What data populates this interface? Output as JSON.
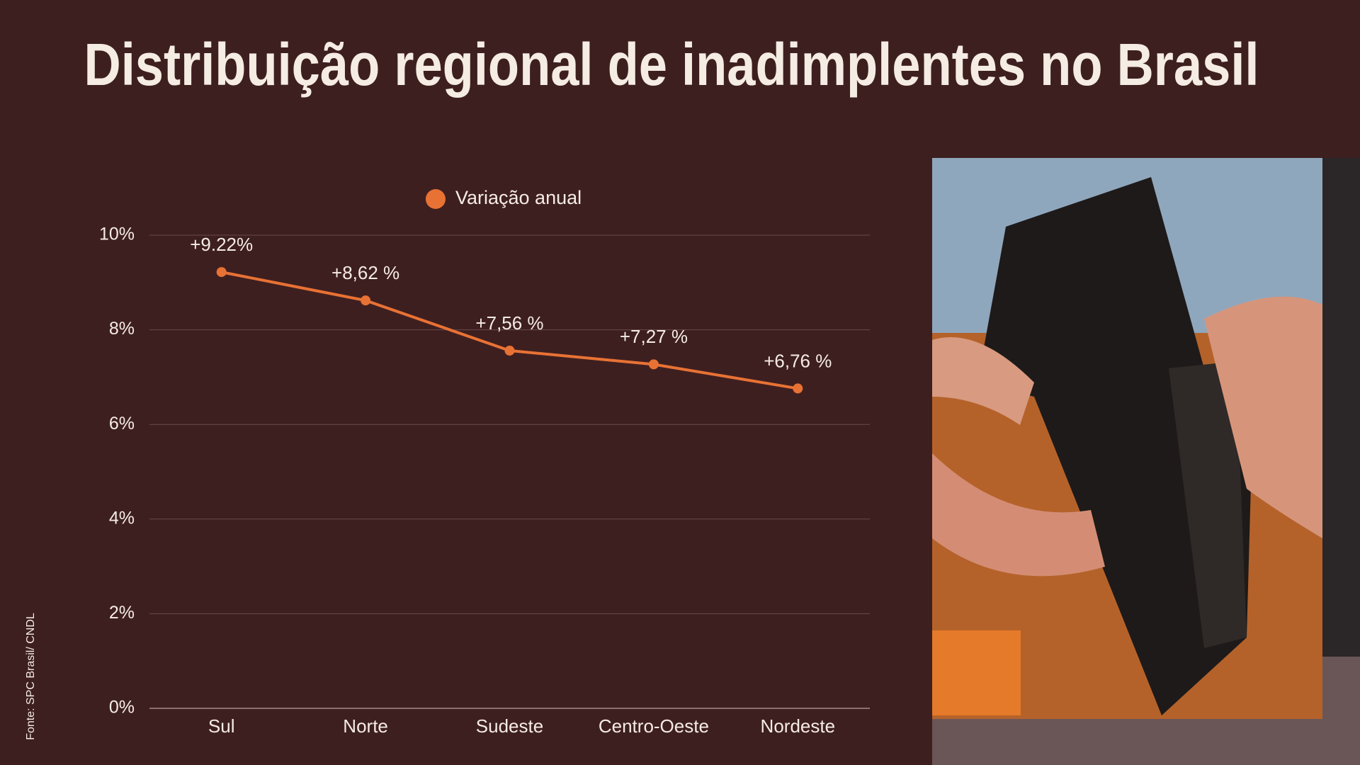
{
  "chart_data": {
    "type": "line",
    "title": "Distribuição regional de inadimplentes no Brasil",
    "source": "Fonte: SPC Brasil/ CNDL",
    "categories": [
      "Sul",
      "Norte",
      "Sudeste",
      "Centro-Oeste",
      "Nordeste"
    ],
    "series": [
      {
        "name": "Variação anual",
        "color": "#e87234",
        "values": [
          9.22,
          8.62,
          7.56,
          7.27,
          6.76
        ],
        "value_labels": [
          "+9.22%",
          "+8,62 %",
          "+7,56 %",
          "+7,27 %",
          "+6,76 %"
        ]
      }
    ],
    "ylim": [
      0,
      10
    ],
    "yticks": [
      {
        "value": 0,
        "label": "0%"
      },
      {
        "value": 2,
        "label": "2%"
      },
      {
        "value": 4,
        "label": "4%"
      },
      {
        "value": 6,
        "label": "6%"
      },
      {
        "value": 8,
        "label": "8%"
      },
      {
        "value": 10,
        "label": "10%"
      }
    ],
    "grid": true
  }
}
